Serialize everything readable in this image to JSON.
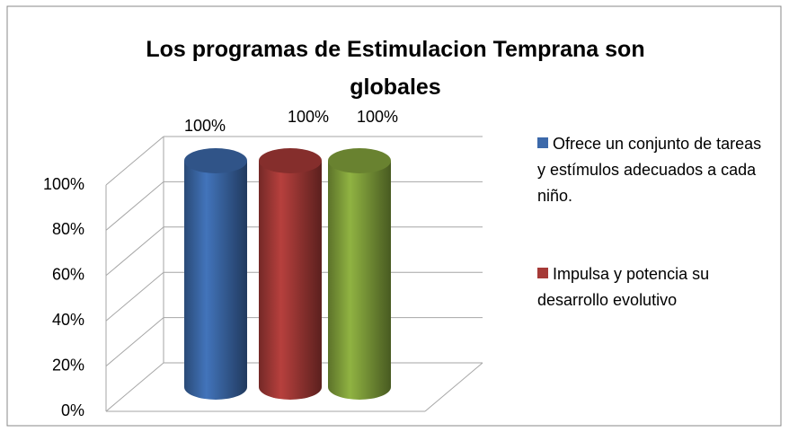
{
  "chart_data": {
    "type": "bar3d",
    "title": "Los programas de Estimulacion Temprana son globales",
    "categories": [
      null
    ],
    "series": [
      {
        "name": "Ofrece un conjunto de tareas y estímulos adecuados a cada niño.",
        "color": "#3c69aa",
        "values": [
          100
        ],
        "value_labels": [
          "100%"
        ]
      },
      {
        "name": "Impulsa y potencia  su desarrollo evolutivo",
        "color": "#a63a37",
        "values": [
          100
        ],
        "value_labels": [
          "100%"
        ]
      },
      {
        "color": "#83a33c",
        "values": [
          100
        ],
        "value_labels": [
          "100%"
        ]
      }
    ],
    "ylim": [
      0,
      100
    ],
    "yticks": [
      {
        "value": 0,
        "label": "0%"
      },
      {
        "value": 20,
        "label": "20%"
      },
      {
        "value": 40,
        "label": "40%"
      },
      {
        "value": 60,
        "label": "60%"
      },
      {
        "value": 80,
        "label": "80%"
      },
      {
        "value": 100,
        "label": "100%"
      }
    ],
    "grid": true
  }
}
